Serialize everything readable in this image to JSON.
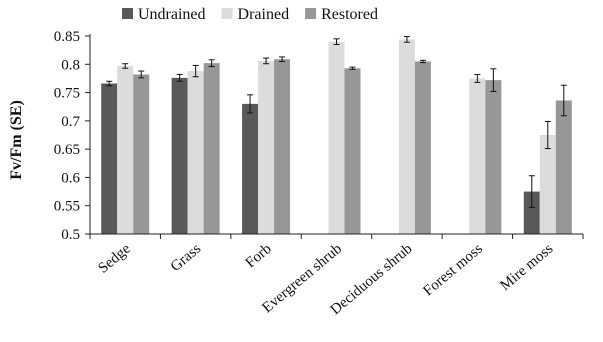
{
  "chart_data": {
    "type": "bar",
    "title": "",
    "xlabel": "",
    "ylabel": "Fv/Fm (SE)",
    "ylim": [
      0.5,
      0.85
    ],
    "yticks": [
      "0.5",
      "0.55",
      "0.6",
      "0.65",
      "0.7",
      "0.75",
      "0.8",
      "0.85"
    ],
    "grid": false,
    "legend_position": "top",
    "error_bars": true,
    "categories": [
      "Sedge",
      "Grass",
      "Forb",
      "Evergreen shrub",
      "Deciduous shrub",
      "Forest moss",
      "Mire moss"
    ],
    "series": [
      {
        "name": "Undrained",
        "color": "#595959",
        "values": [
          0.766,
          0.776,
          0.73,
          null,
          null,
          null,
          0.575
        ],
        "errors": [
          0.004,
          0.006,
          0.016,
          null,
          null,
          null,
          0.028
        ]
      },
      {
        "name": "Drained",
        "color": "#dcdcdc",
        "values": [
          0.797,
          0.788,
          0.806,
          0.84,
          0.844,
          0.775,
          0.675
        ],
        "errors": [
          0.004,
          0.01,
          0.005,
          0.005,
          0.005,
          0.007,
          0.024
        ]
      },
      {
        "name": "Restored",
        "color": "#979797",
        "values": [
          0.782,
          0.802,
          0.809,
          0.793,
          0.805,
          0.772,
          0.736
        ],
        "errors": [
          0.006,
          0.006,
          0.004,
          0.002,
          0.002,
          0.02,
          0.027
        ]
      }
    ]
  }
}
